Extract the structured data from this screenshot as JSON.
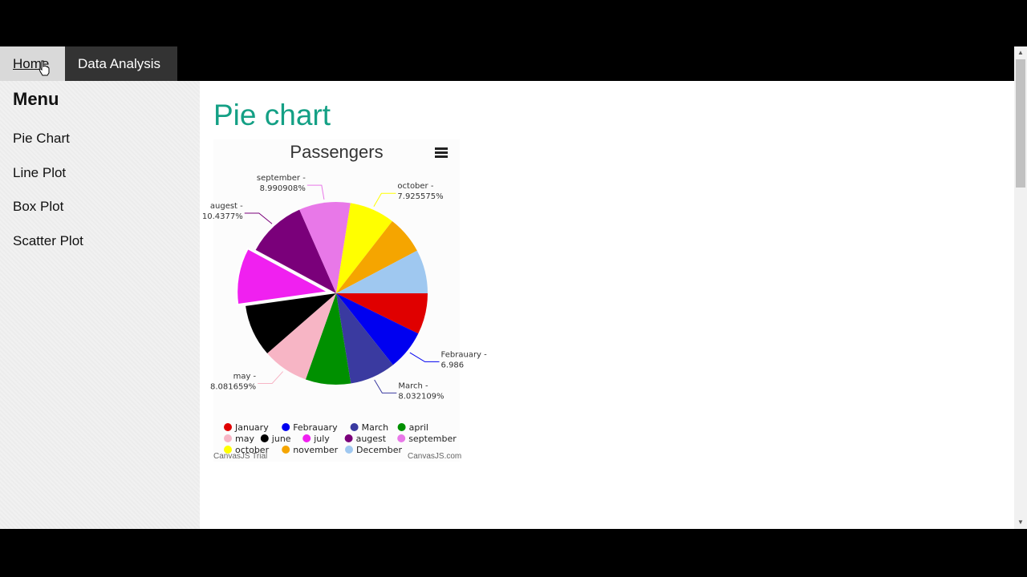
{
  "nav": {
    "home_label": "Home",
    "data_label": "Data Analysis"
  },
  "sidebar": {
    "title": "Menu",
    "items": [
      {
        "label": "Pie Chart"
      },
      {
        "label": "Line Plot"
      },
      {
        "label": "Box Plot"
      },
      {
        "label": "Scatter Plot"
      }
    ]
  },
  "main": {
    "page_title": "Pie chart"
  },
  "credits": {
    "left": "CanvasJS Trial",
    "right": "CanvasJS.com"
  },
  "chart_data": {
    "type": "pie",
    "title": "Passengers",
    "legend": "bottom",
    "slices": [
      {
        "name": "January",
        "value": 7.2,
        "color": "#e00000"
      },
      {
        "name": "Febrauary",
        "value": 6.986,
        "color": "#0000f0",
        "label": "Febrauary - 6.986"
      },
      {
        "name": "March",
        "value": 8.032109,
        "color": "#3a3aa0",
        "label": "March - 8.032109%"
      },
      {
        "name": "april",
        "value": 7.9,
        "color": "#009000"
      },
      {
        "name": "may",
        "value": 8.081659,
        "color": "#f7b5c5",
        "label": "may - 8.081659%"
      },
      {
        "name": "june",
        "value": 9.1,
        "color": "#000000"
      },
      {
        "name": "july",
        "value": 10.0,
        "color": "#f020f0",
        "exploded": true
      },
      {
        "name": "augest",
        "value": 10.4377,
        "color": "#7a007a",
        "label": "augest - 10.4377%"
      },
      {
        "name": "september",
        "value": 8.990908,
        "color": "#e878e8",
        "label": "september - 8.990908%"
      },
      {
        "name": "october",
        "value": 7.925575,
        "color": "#ffff00",
        "label": "october - 7.925575%"
      },
      {
        "name": "november",
        "value": 6.7,
        "color": "#f5a500"
      },
      {
        "name": "December",
        "value": 7.65,
        "color": "#9fc8f0"
      }
    ]
  }
}
